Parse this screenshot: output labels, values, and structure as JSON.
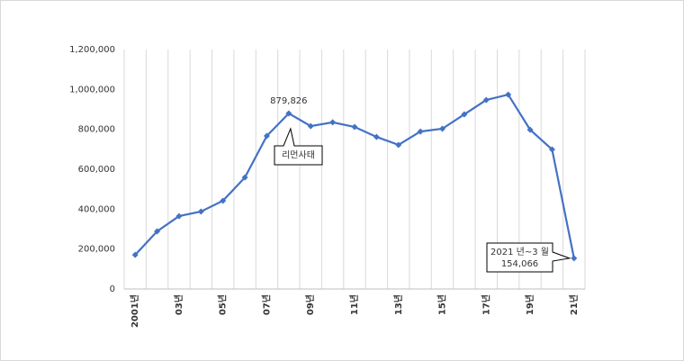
{
  "chart_data": {
    "type": "line",
    "categories": [
      "2001년",
      null,
      "03년",
      null,
      "05년",
      null,
      "07년",
      null,
      "09년",
      null,
      "11년",
      null,
      "13년",
      null,
      "15년",
      null,
      "17년",
      null,
      "19년",
      null,
      "21년"
    ],
    "values": [
      171000,
      289000,
      365000,
      388000,
      442000,
      559000,
      767000,
      879826,
      816000,
      835000,
      812000,
      762000,
      722000,
      789000,
      803000,
      875000,
      947000,
      974000,
      798000,
      699000,
      154066
    ],
    "value_labels": [
      null,
      null,
      null,
      null,
      null,
      null,
      null,
      "879,826",
      null,
      null,
      null,
      null,
      null,
      null,
      null,
      null,
      null,
      null,
      null,
      null,
      "154,066"
    ],
    "annotations": [
      "리먼사태",
      "2021 년~3 월"
    ],
    "color": "#4472c4",
    "ylim": [
      0,
      1200000
    ],
    "yticks": [
      0,
      {
        "value": 200000,
        "label": "200,000"
      },
      {
        "value": 400000,
        "label": "400,000"
      },
      {
        "value": 600000,
        "label": "600,000"
      },
      {
        "value": 800000,
        "label": "800,000"
      },
      {
        "value": 1000000,
        "label": "1,000,000"
      },
      {
        "value": 1200000,
        "label": "1,200,000"
      }
    ],
    "grid": "x"
  }
}
